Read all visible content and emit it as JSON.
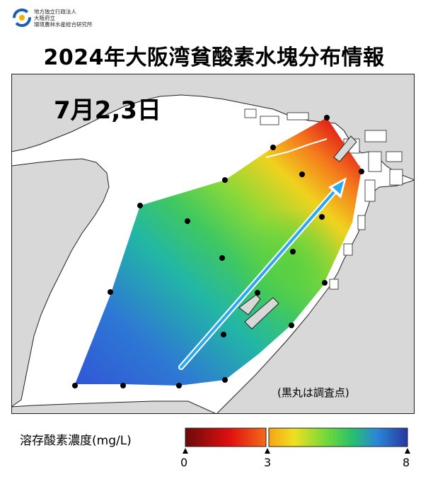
{
  "header": {
    "org_line1": "地方独立行政法人",
    "org_line2": "大阪府立",
    "org_line3": "環境農林水産総合研究所",
    "title": "2024年大阪湾貧酸素水塊分布情報"
  },
  "map": {
    "date_label": "7月2,3日",
    "note": "(黒丸は調査点)",
    "colors": {
      "land": "#d8d8d8",
      "sea": "#ffffff",
      "low_oxygen": "#e8201c",
      "mid_oxygen": "#6cd63c",
      "high_oxygen": "#2f58e0",
      "arrow": "#2aa8f0"
    },
    "icons": [
      "logo-icon",
      "arrow-icon",
      "survey-point-icon"
    ]
  },
  "legend": {
    "label": "溶存酸素濃度(mg/L)",
    "unit": "mg/L",
    "ticks": [
      {
        "value": 0,
        "label": "0"
      },
      {
        "value": 3,
        "label": "3"
      },
      {
        "value": 8,
        "label": "8"
      }
    ],
    "range": [
      0,
      8
    ]
  }
}
